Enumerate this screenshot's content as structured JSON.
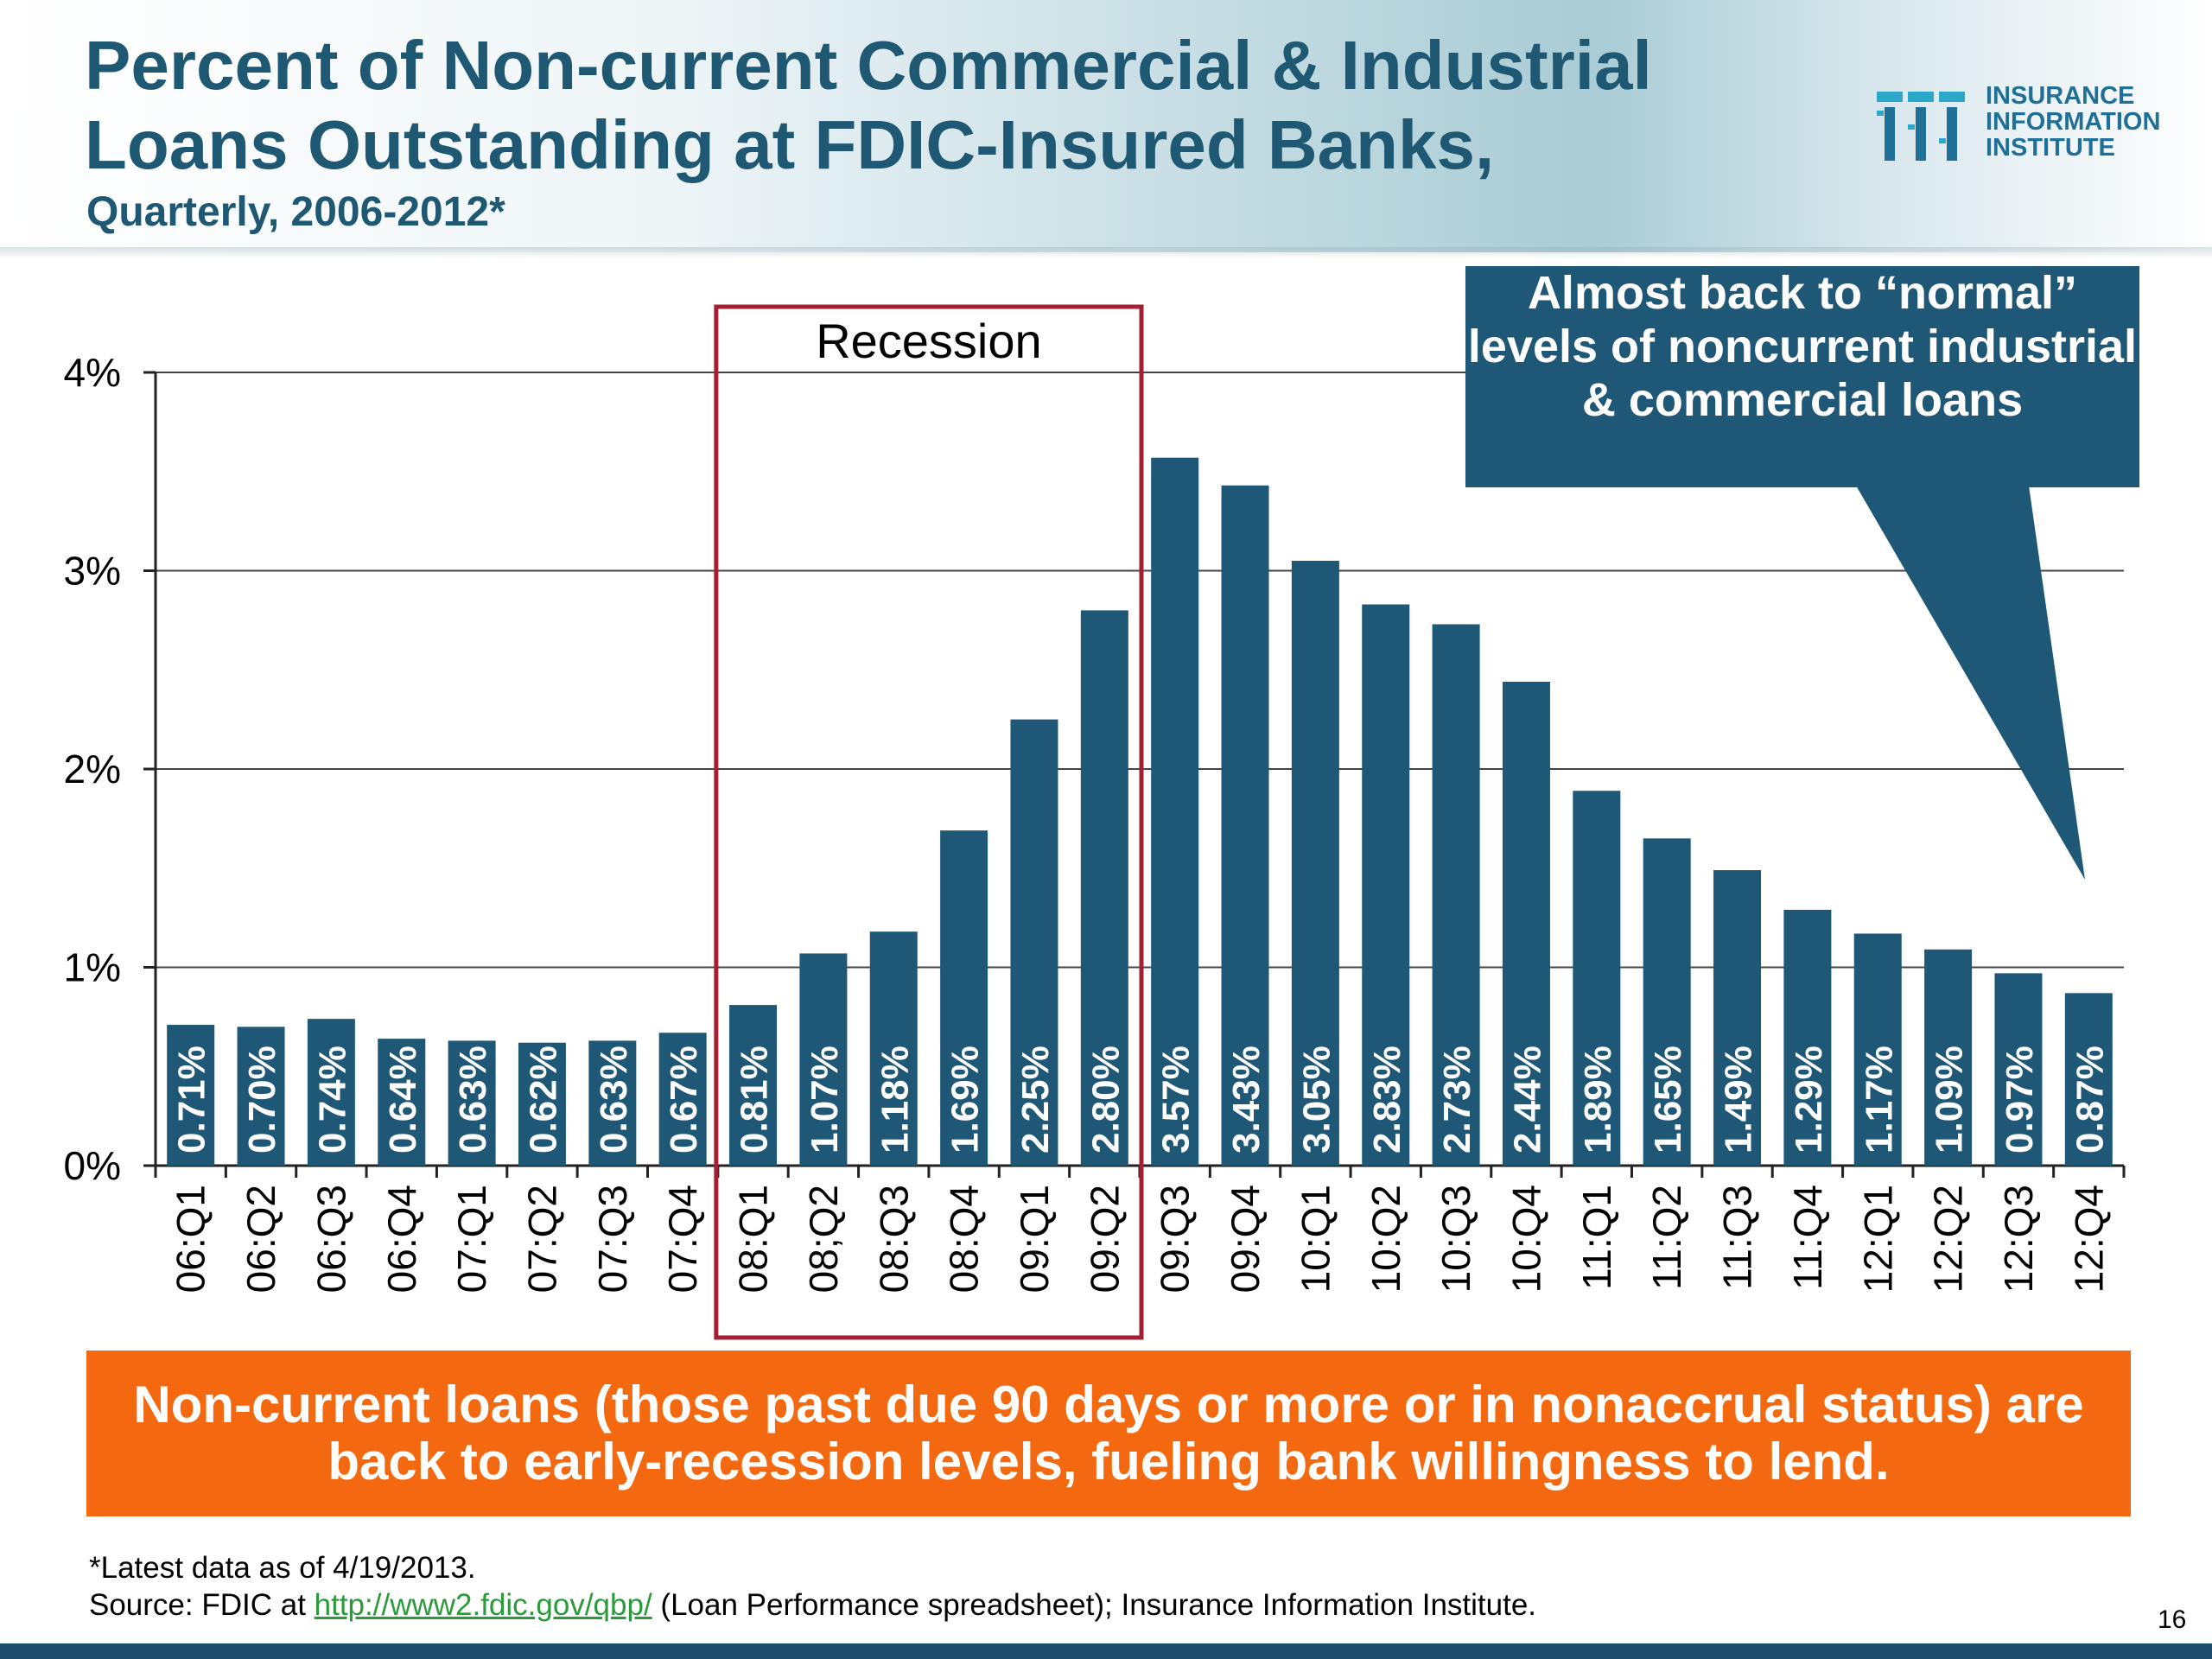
{
  "header": {
    "title": "Percent of Non-current Commercial & Industrial Loans Outstanding at FDIC-Insured Banks,",
    "subtitle": "Quarterly, 2006-2012*"
  },
  "logo": {
    "line1": "INSURANCE",
    "line2": "INFORMATION",
    "line3": "INSTITUTE"
  },
  "callout": {
    "text": "Almost back to “normal” levels of noncurrent industrial & commercial loans"
  },
  "banner": {
    "text": "Non-current loans (those past due 90 days or more or in nonaccrual status) are back to early-recession levels, fueling bank willingness to lend."
  },
  "footnote": "*Latest data as of 4/19/2013.",
  "source": {
    "prefix": "Source:  FDIC at ",
    "link": "http://www2.fdic.gov/qbp/",
    "suffix": " (Loan Performance spreadsheet); Insurance Information Institute."
  },
  "page_number": "16",
  "colors": {
    "bar": "#1f5877",
    "recession_box": "#a31f34",
    "banner": "#f4690f",
    "callout": "#1f5877"
  },
  "chart_data": {
    "type": "bar",
    "title": "Percent of Non-current Commercial & Industrial Loans Outstanding at FDIC-Insured Banks, Quarterly, 2006-2012*",
    "xlabel": "",
    "ylabel": "",
    "ylim": [
      0,
      4
    ],
    "yticks": [
      0,
      1,
      2,
      3,
      4
    ],
    "ytick_labels": [
      "0%",
      "1%",
      "2%",
      "3%",
      "4%"
    ],
    "grid": true,
    "categories": [
      "06:Q1",
      "06:Q2",
      "06:Q3",
      "06:Q4",
      "07:Q1",
      "07:Q2",
      "07:Q3",
      "07:Q4",
      "08:Q1",
      "08;Q2",
      "08:Q3",
      "08:Q4",
      "09:Q1",
      "09:Q2",
      "09:Q3",
      "09:Q4",
      "10:Q1",
      "10:Q2",
      "10:Q3",
      "10:Q4",
      "11:Q1",
      "11:Q2",
      "11:Q3",
      "11:Q4",
      "12:Q1",
      "12:Q2",
      "12:Q3",
      "12:Q4"
    ],
    "values": [
      0.71,
      0.7,
      0.74,
      0.64,
      0.63,
      0.62,
      0.63,
      0.67,
      0.81,
      1.07,
      1.18,
      1.69,
      2.25,
      2.8,
      3.57,
      3.43,
      3.05,
      2.83,
      2.73,
      2.44,
      1.89,
      1.65,
      1.49,
      1.29,
      1.17,
      1.09,
      0.97,
      0.87
    ],
    "data_labels": [
      "0.71%",
      "0.70%",
      "0.74%",
      "0.64%",
      "0.63%",
      "0.62%",
      "0.63%",
      "0.67%",
      "0.81%",
      "1.07%",
      "1.18%",
      "1.69%",
      "2.25%",
      "2.80%",
      "3.57%",
      "3.43%",
      "3.05%",
      "2.83%",
      "2.73%",
      "2.44%",
      "1.89%",
      "1.65%",
      "1.49%",
      "1.29%",
      "1.17%",
      "1.09%",
      "0.97%",
      "0.87%"
    ],
    "annotation": {
      "label": "Recession",
      "from": "08:Q1",
      "to": "09:Q2"
    }
  }
}
